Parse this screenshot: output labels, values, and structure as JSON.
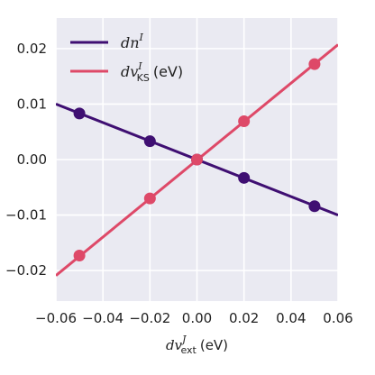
{
  "chart_data": {
    "type": "line",
    "xlabel": {
      "math": "dv",
      "sub": "ext",
      "sup": "J",
      "unit": "(eV)"
    },
    "ylabel": "",
    "xlim": [
      -0.06,
      0.06
    ],
    "ylim": [
      -0.0255,
      0.0255
    ],
    "xticks": [
      -0.06,
      -0.04,
      -0.02,
      0.0,
      0.02,
      0.04,
      0.06
    ],
    "xtick_labels": [
      "−0.06",
      "−0.04",
      "−0.02",
      "0.00",
      "0.02",
      "0.04",
      "0.06"
    ],
    "yticks": [
      -0.02,
      -0.01,
      0.0,
      0.01,
      0.02
    ],
    "ytick_labels": [
      "−0.02",
      "−0.01",
      "0.00",
      "0.01",
      "0.02"
    ],
    "grid": true,
    "legend_position": "top-left",
    "background": "#eaeaf2",
    "series": [
      {
        "label_math": "dn",
        "label_sup": "I",
        "label_sub": "",
        "label_unit": "",
        "color": "#3f0f72",
        "x": [
          -0.05,
          -0.02,
          0.0,
          0.02,
          0.05
        ],
        "y": [
          0.0083,
          0.0033,
          0.0,
          -0.0033,
          -0.0084
        ],
        "fit_line": {
          "x": [
            -0.06,
            0.06
          ],
          "y": [
            0.01,
            -0.01
          ]
        }
      },
      {
        "label_math": "dv",
        "label_sup": "I",
        "label_sub": "KS",
        "label_unit": "(eV)",
        "color": "#de4968",
        "x": [
          -0.05,
          -0.02,
          0.0,
          0.02,
          0.05
        ],
        "y": [
          -0.0173,
          -0.007,
          0.0,
          0.0069,
          0.0172
        ],
        "fit_line": {
          "x": [
            -0.06,
            0.06
          ],
          "y": [
            -0.0209,
            0.0207
          ]
        }
      }
    ]
  }
}
